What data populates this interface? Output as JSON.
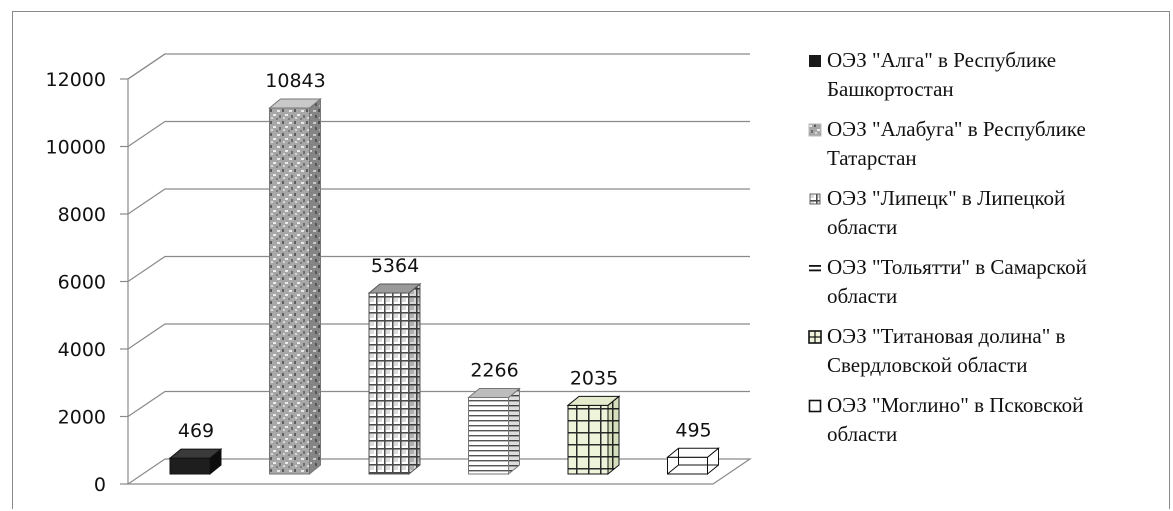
{
  "chart_data": {
    "type": "bar",
    "categories": [
      "ОЭЗ \"Алга\" в Республике Башкортостан",
      "ОЭЗ \"Алабуга\" в Республике Татарстан",
      "ОЭЗ \"Липецк\" в Липецкой области",
      "ОЭЗ \"Тольятти\" в Самарской области",
      "ОЭЗ \"Титановая долина\" в Свердловской области",
      "ОЭЗ \"Моглино\" в Псковской области"
    ],
    "values": [
      469,
      10843,
      5364,
      2266,
      2035,
      495
    ],
    "data_labels": [
      "469",
      "10843",
      "5364",
      "2266",
      "2035",
      "495"
    ],
    "yticks": [
      "0",
      "2000",
      "4000",
      "6000",
      "8000",
      "10000",
      "12000"
    ],
    "ylim": [
      0,
      12000
    ],
    "title": "",
    "xlabel": "",
    "ylabel": "",
    "grid": true,
    "legend_position": "right",
    "legend": [
      {
        "line1": "ОЭЗ \"Алга\"  в Республике",
        "line2": "Башкортостан",
        "pattern": "solid-dark"
      },
      {
        "line1": "ОЭЗ \"Алабуга\"  в Республике",
        "line2": "Татарстан",
        "pattern": "granite"
      },
      {
        "line1": "ОЭЗ \"Липецк\"  в Липецкой",
        "line2": "области",
        "pattern": "checker"
      },
      {
        "line1": "ОЭЗ \"Тольятти\" в Самарской",
        "line2": "области",
        "pattern": "horizontal-lines"
      },
      {
        "line1": "ОЭЗ \"Титановая долина\" в",
        "line2": "Свердловской области",
        "pattern": "green-grid"
      },
      {
        "line1": "ОЭЗ \"Моглино\" в Псковской",
        "line2": "области",
        "pattern": "outline"
      }
    ]
  }
}
